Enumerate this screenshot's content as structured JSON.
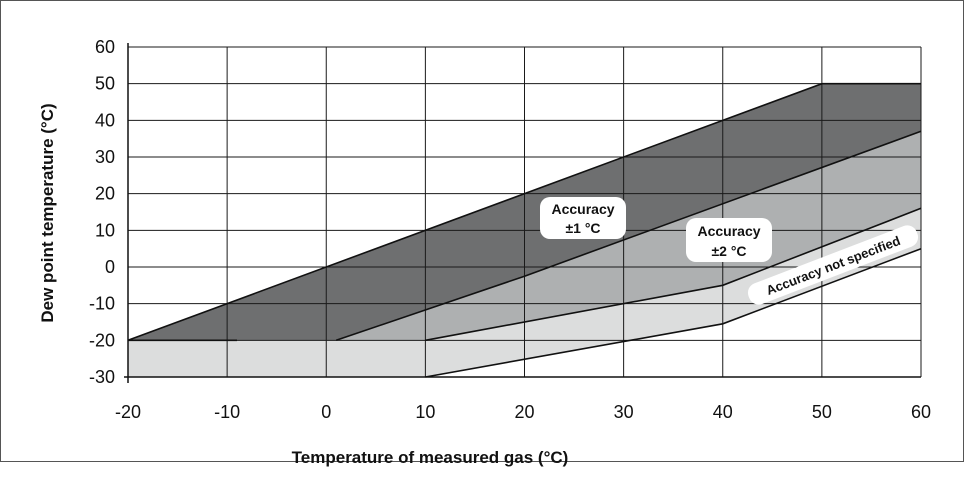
{
  "chart_data": {
    "type": "area",
    "xlabel": "Temperature of measured gas  (°C)",
    "ylabel": "Dew point  temperature (°C)",
    "xlim": [
      -20,
      60
    ],
    "ylim": [
      -30,
      60
    ],
    "x_ticks": [
      "-20",
      "-10",
      "0",
      "10",
      "20",
      "30",
      "40",
      "50",
      "60"
    ],
    "y_ticks": [
      "60",
      "50",
      "40",
      "30",
      "20",
      "10",
      "0",
      "-10",
      "-20",
      "-30"
    ],
    "grid": true,
    "boundaries": [
      {
        "name": "upper",
        "points": [
          [
            -20,
            -20
          ],
          [
            50,
            50
          ],
          [
            60,
            50
          ]
        ]
      },
      {
        "name": "accuracy-1-lower",
        "points": [
          [
            1,
            -20
          ],
          [
            20,
            -2.5
          ],
          [
            60,
            37
          ]
        ]
      },
      {
        "name": "accuracy-2-lower",
        "points": [
          [
            10,
            -20
          ],
          [
            40,
            -5
          ],
          [
            60,
            16
          ]
        ]
      },
      {
        "name": "not-specified-lower",
        "points": [
          [
            10,
            -30
          ],
          [
            40,
            -15.5
          ],
          [
            60,
            5
          ]
        ]
      },
      {
        "name": "floor",
        "points": [
          [
            -20,
            -20
          ],
          [
            -9,
            -20
          ]
        ]
      }
    ],
    "regions": [
      {
        "label": "Accuracy\n±1 °C",
        "fill": "#6e6f70"
      },
      {
        "label": "Accuracy\n±2 °C",
        "fill": "#aeb0b1"
      },
      {
        "label": "Accuracy not specified",
        "fill": "#dcdddd"
      },
      {
        "label": "",
        "fill": "#dcdddd"
      }
    ],
    "annotations": {
      "acc1_line1": "Accuracy",
      "acc1_line2": "±1 °C",
      "acc2_line1": "Accuracy",
      "acc2_line2": "±2 °C",
      "not_specified": "Accuracy not specified"
    }
  }
}
